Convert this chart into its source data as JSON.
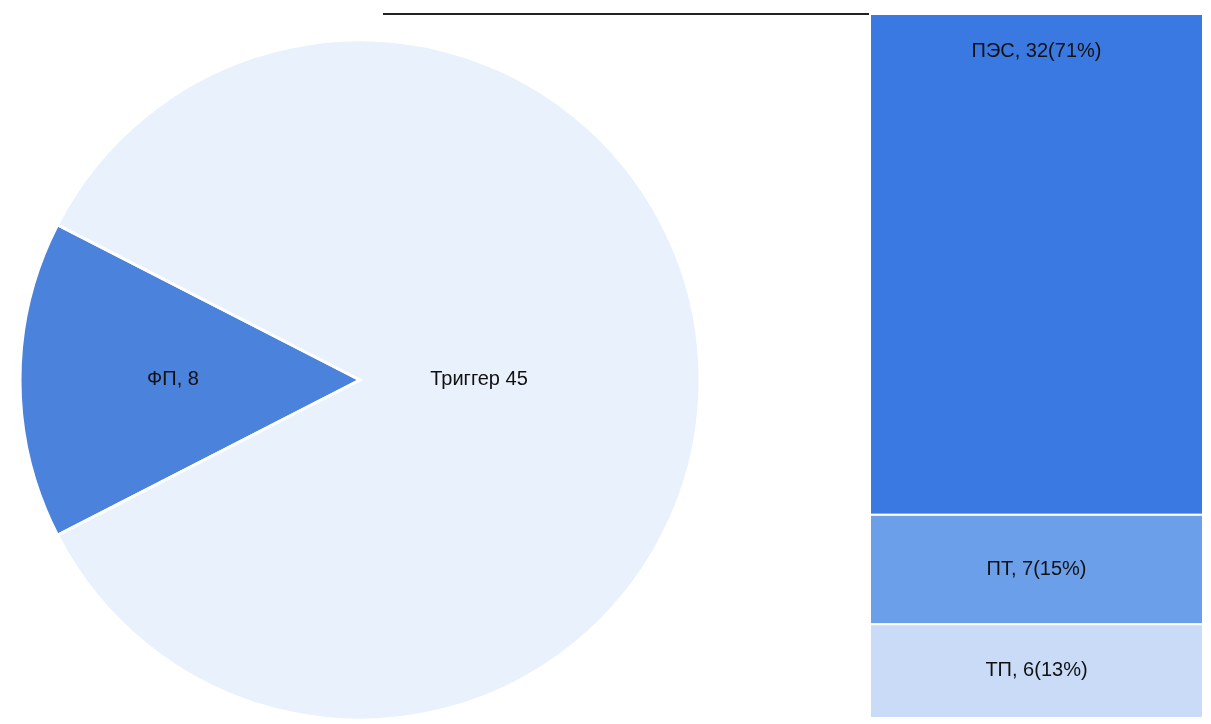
{
  "chart_data": [
    {
      "type": "pie",
      "categories": [
        "ФП, 8",
        "Триггер 45"
      ],
      "values": [
        8,
        45
      ],
      "colors": [
        "#4a82dc",
        "#e9f1fc"
      ]
    },
    {
      "type": "bar",
      "stacked": true,
      "categories": [
        null
      ],
      "series": [
        {
          "color": "#c9dbf6",
          "values": [
            6
          ],
          "value_labels": [
            "ТП, 6(13%)"
          ]
        },
        {
          "color": "#6b9fea",
          "values": [
            7
          ],
          "value_labels": [
            "ПТ, 7(15%)"
          ]
        },
        {
          "color": "#3b79e2",
          "values": [
            32
          ],
          "value_labels": [
            "ПЭС, 32(71%)"
          ]
        }
      ]
    }
  ]
}
